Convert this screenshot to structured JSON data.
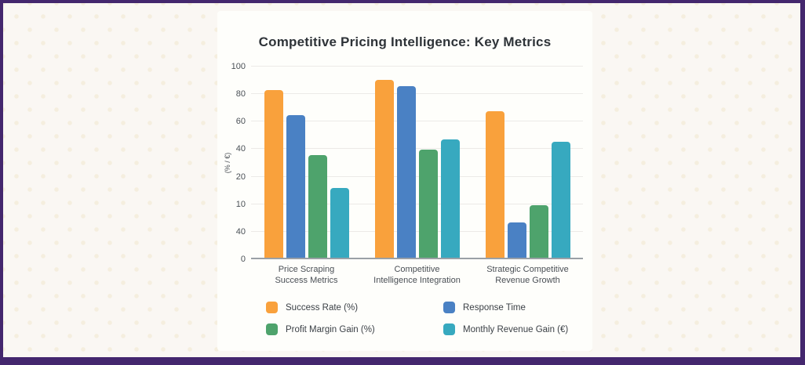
{
  "window": {
    "frame_border_color": "#44276E",
    "page_background": "#FAF7F3",
    "card_background": "#FEFEFB"
  },
  "chart_data": {
    "type": "bar",
    "title": "Competitive Pricing Intelligence: Key Metrics",
    "ylabel": "(% / €)",
    "xlabel": "",
    "categories": [
      [
        "Price Scraping",
        "Success Metrics"
      ],
      [
        "Competitive",
        "Intelligence Integration"
      ],
      [
        "Strategic Competitive",
        "Revenue Growth"
      ]
    ],
    "series": [
      {
        "name": "Success Rate (%)",
        "color": "#F9A13C",
        "values": [
          88,
          93,
          77
        ]
      },
      {
        "name": "Response Time",
        "color": "#4A81C4",
        "values": [
          75,
          90,
          19
        ]
      },
      {
        "name": "Profit Margin Gain (%)",
        "color": "#4EA36C",
        "values": [
          54,
          57,
          28
        ]
      },
      {
        "name": "Monthly Revenue Gain (€)",
        "color": "#37A9BF",
        "values": [
          37,
          62,
          61
        ]
      }
    ],
    "ylim": [
      0,
      100
    ],
    "ytick_labels_bottom_to_top": [
      "0",
      "40",
      "10",
      "20",
      "40",
      "60",
      "80",
      "100"
    ],
    "grid": true,
    "legend_position": "bottom",
    "axis_note": "Tick labels printed exactly as shown (non-monotonic) on equally spaced gridlines; bar values are positions on a linear 0-100 scale."
  }
}
